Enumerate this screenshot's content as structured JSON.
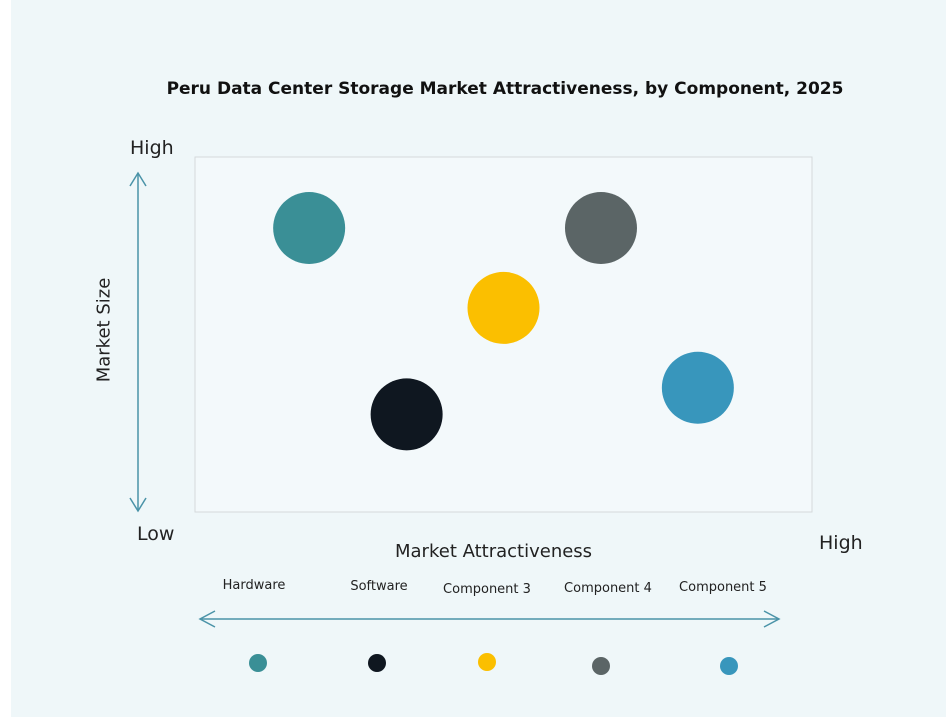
{
  "chart_data": {
    "type": "scatter",
    "title": "Peru Data Center Storage Market Attractiveness,  by Component, 2025",
    "xlabel": "Market Attractiveness",
    "ylabel": "Market Size",
    "x_low_label": "Low",
    "x_high_label": "High",
    "y_high_label": "High",
    "xlim": [
      0,
      1
    ],
    "ylim": [
      0,
      1
    ],
    "grid": false,
    "legend_placement": "bottom",
    "series": [
      {
        "name": "Hardware",
        "x": 0.185,
        "y": 0.8,
        "color": "#3a8f96"
      },
      {
        "name": "Software",
        "x": 0.343,
        "y": 0.275,
        "color": "#0f1720"
      },
      {
        "name": "Component 3",
        "x": 0.5,
        "y": 0.575,
        "color": "#fbbf00"
      },
      {
        "name": "Component 4",
        "x": 0.658,
        "y": 0.8,
        "color": "#5b6566"
      },
      {
        "name": "Component 5",
        "x": 0.815,
        "y": 0.35,
        "color": "#3896bc"
      }
    ],
    "axis_color": "#4a93a8"
  }
}
